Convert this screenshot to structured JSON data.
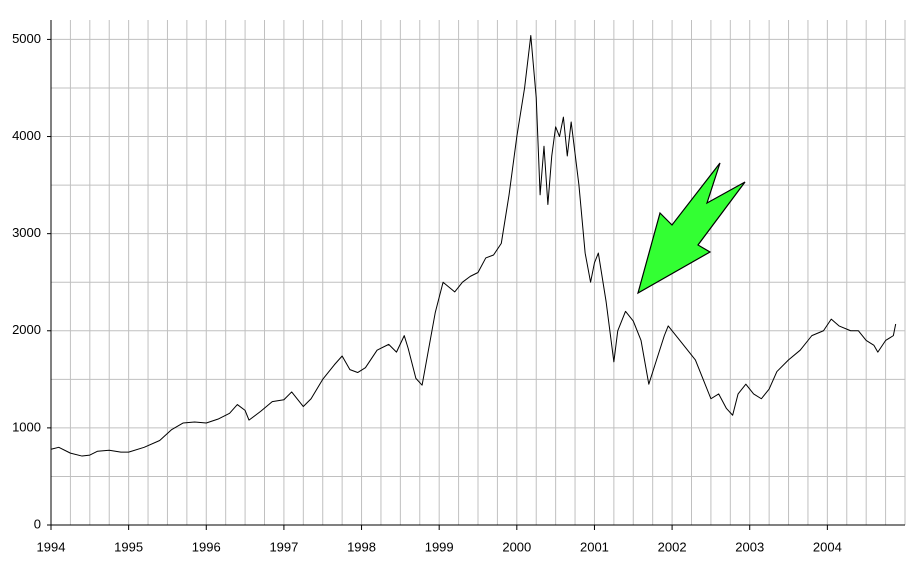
{
  "chart_data": {
    "type": "line",
    "x": [
      1994.0,
      1994.1,
      1994.25,
      1994.4,
      1994.5,
      1994.6,
      1994.75,
      1994.9,
      1995.0,
      1995.2,
      1995.4,
      1995.55,
      1995.7,
      1995.85,
      1996.0,
      1996.15,
      1996.3,
      1996.4,
      1996.5,
      1996.55,
      1996.7,
      1996.85,
      1997.0,
      1997.1,
      1997.25,
      1997.35,
      1997.5,
      1997.65,
      1997.75,
      1997.85,
      1997.95,
      1998.05,
      1998.2,
      1998.35,
      1998.45,
      1998.55,
      1998.6,
      1998.7,
      1998.78,
      1998.85,
      1998.95,
      1999.05,
      1999.2,
      1999.3,
      1999.4,
      1999.5,
      1999.6,
      1999.7,
      1999.8,
      1999.9,
      2000.0,
      2000.1,
      2000.18,
      2000.25,
      2000.3,
      2000.35,
      2000.4,
      2000.45,
      2000.5,
      2000.55,
      2000.6,
      2000.65,
      2000.7,
      2000.8,
      2000.88,
      2000.95,
      2001.0,
      2001.05,
      2001.15,
      2001.25,
      2001.3,
      2001.4,
      2001.5,
      2001.6,
      2001.7,
      2001.8,
      2001.9,
      2001.95,
      2002.1,
      2002.2,
      2002.3,
      2002.4,
      2002.5,
      2002.6,
      2002.7,
      2002.78,
      2002.85,
      2002.95,
      2003.05,
      2003.15,
      2003.25,
      2003.35,
      2003.5,
      2003.65,
      2003.8,
      2003.95,
      2004.05,
      2004.15,
      2004.3,
      2004.4,
      2004.5,
      2004.6,
      2004.65,
      2004.75,
      2004.85,
      2004.88
    ],
    "series": [
      {
        "color": "#000000",
        "values": [
          780,
          800,
          740,
          710,
          720,
          760,
          770,
          750,
          750,
          800,
          870,
          980,
          1050,
          1060,
          1050,
          1090,
          1150,
          1240,
          1180,
          1080,
          1170,
          1270,
          1290,
          1370,
          1220,
          1300,
          1500,
          1650,
          1740,
          1600,
          1570,
          1620,
          1800,
          1860,
          1780,
          1950,
          1820,
          1510,
          1440,
          1750,
          2190,
          2500,
          2400,
          2500,
          2560,
          2600,
          2750,
          2780,
          2900,
          3400,
          4000,
          4500,
          5040,
          4400,
          3400,
          3900,
          3300,
          3800,
          4100,
          4000,
          4200,
          3800,
          4150,
          3500,
          2800,
          2500,
          2700,
          2800,
          2300,
          1680,
          2000,
          2200,
          2100,
          1900,
          1450,
          1700,
          1950,
          2050,
          1900,
          1800,
          1700,
          1500,
          1300,
          1350,
          1200,
          1130,
          1350,
          1450,
          1350,
          1300,
          1400,
          1580,
          1700,
          1800,
          1950,
          2000,
          2120,
          2050,
          2000,
          2000,
          1900,
          1850,
          1780,
          1900,
          1950,
          2070
        ]
      }
    ],
    "xlim": [
      1994,
      2005
    ],
    "xticks": [
      1994,
      1995,
      1996,
      1997,
      1998,
      1999,
      2000,
      2001,
      2002,
      2003,
      2004
    ],
    "ylim": [
      0,
      5200
    ],
    "yticks": [
      0,
      1000,
      2000,
      3000,
      4000,
      5000
    ],
    "x_minor_ticks": [
      1994.25,
      1994.5,
      1994.75,
      1995.25,
      1995.5,
      1995.75,
      1996.25,
      1996.5,
      1996.75,
      1997.25,
      1997.5,
      1997.75,
      1998.25,
      1998.5,
      1998.75,
      1999.25,
      1999.5,
      1999.75,
      2000.25,
      2000.5,
      2000.75,
      2001.25,
      2001.5,
      2001.75,
      2002.25,
      2002.5,
      2002.75,
      2003.25,
      2003.5,
      2003.75,
      2004.25,
      2004.5,
      2004.75,
      2005
    ],
    "y_minor_ticks": [
      500,
      1500,
      2500,
      3500,
      4500
    ],
    "grid": true
  }
}
